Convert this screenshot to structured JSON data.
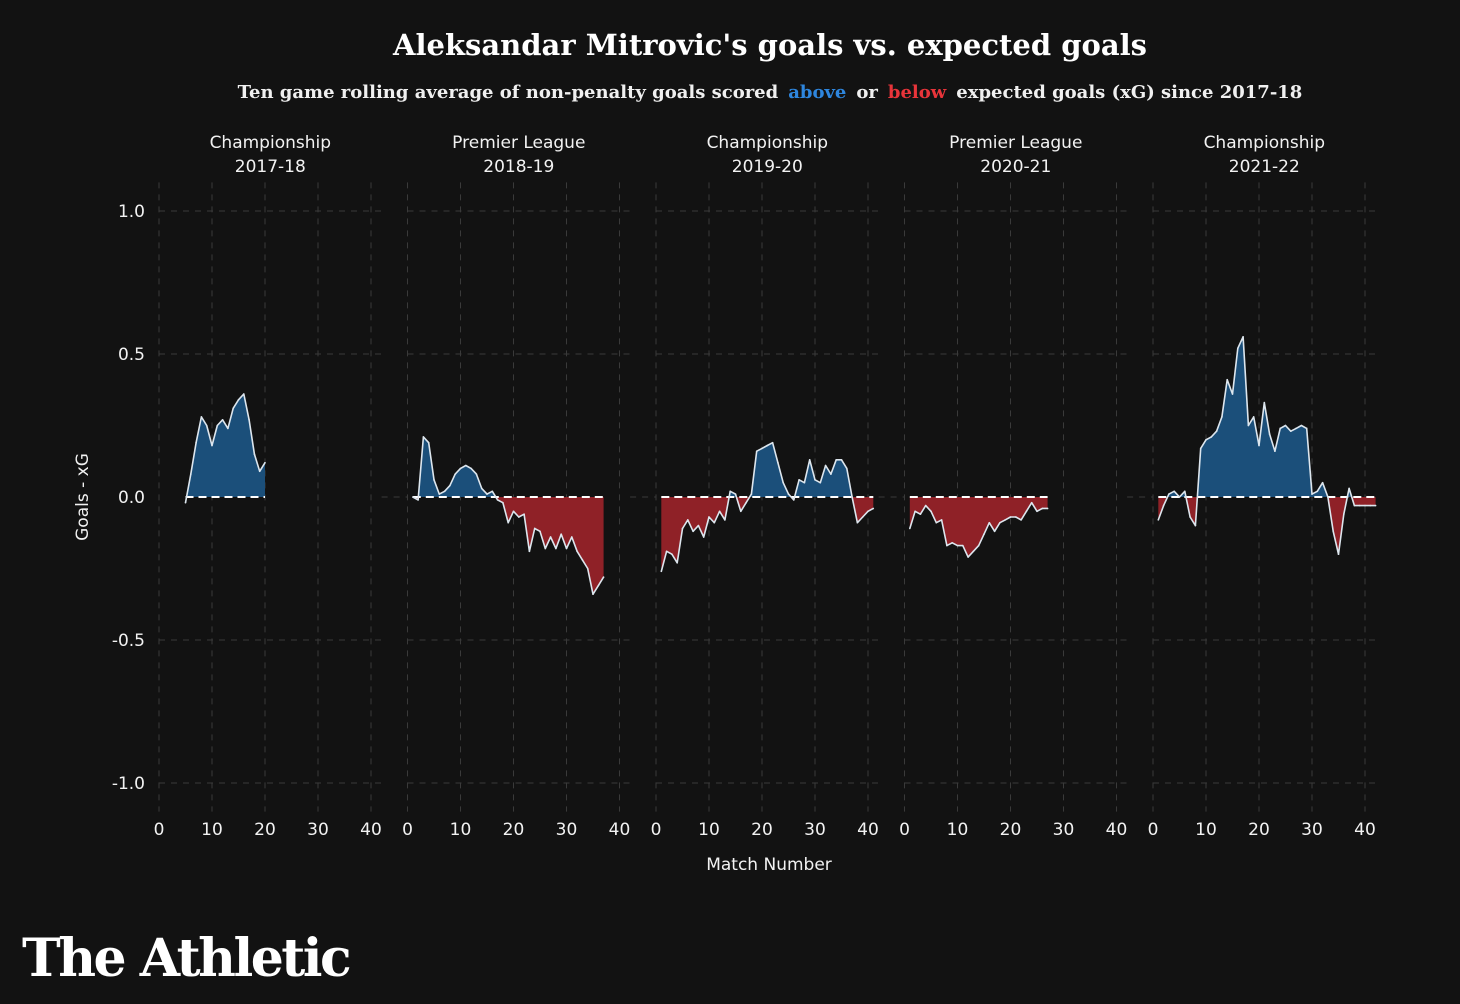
{
  "chart_data": {
    "type": "area",
    "title": "Aleksandar Mitrovic's goals vs. expected goals",
    "subtitle": {
      "prefix": "Ten game rolling average of non-penalty goals scored",
      "above": "above",
      "or": "or",
      "below": "below",
      "suffix": "expected goals (xG) since 2017-18"
    },
    "xlabel": "Match Number",
    "ylabel": "Goals - xG",
    "ylim": [
      -1.1,
      1.1
    ],
    "xlim": [
      0,
      42
    ],
    "yticks": [
      1.0,
      0.5,
      0.0,
      -0.5,
      -1.0
    ],
    "ytick_labels": [
      "1.0",
      "0.5",
      "0.0",
      "-0.5",
      "-1.0"
    ],
    "xticks": [
      0,
      10,
      20,
      30,
      40
    ],
    "xtick_labels": [
      "0",
      "10",
      "20",
      "30",
      "40"
    ],
    "grid": true,
    "colors": {
      "above": "#1b4f7a",
      "below": "#8f2127",
      "line": "#dde6ee",
      "accent_above": "#2e86de",
      "accent_below": "#e8343a"
    },
    "panels": [
      {
        "name": "Championship\n2017-18",
        "x": [
          5,
          6,
          7,
          8,
          9,
          10,
          11,
          12,
          13,
          14,
          15,
          16,
          17,
          18,
          19,
          20
        ],
        "y": [
          -0.02,
          0.08,
          0.19,
          0.28,
          0.25,
          0.18,
          0.25,
          0.27,
          0.24,
          0.31,
          0.34,
          0.36,
          0.27,
          0.15,
          0.09,
          0.12
        ]
      },
      {
        "name": "Premier League\n2018-19",
        "x": [
          1,
          2,
          3,
          4,
          5,
          6,
          7,
          8,
          9,
          10,
          11,
          12,
          13,
          14,
          15,
          16,
          17,
          18,
          19,
          20,
          21,
          22,
          23,
          24,
          25,
          26,
          27,
          28,
          29,
          30,
          31,
          32,
          33,
          34,
          35,
          36,
          37
        ],
        "y": [
          0.0,
          -0.01,
          0.21,
          0.19,
          0.06,
          0.01,
          0.02,
          0.04,
          0.08,
          0.1,
          0.11,
          0.1,
          0.08,
          0.03,
          0.01,
          0.02,
          -0.01,
          -0.02,
          -0.09,
          -0.05,
          -0.07,
          -0.06,
          -0.19,
          -0.11,
          -0.12,
          -0.18,
          -0.14,
          -0.18,
          -0.13,
          -0.18,
          -0.14,
          -0.19,
          -0.22,
          -0.25,
          -0.34,
          -0.31,
          -0.28
        ]
      },
      {
        "name": "Championship\n2019-20",
        "x": [
          1,
          2,
          3,
          4,
          5,
          6,
          7,
          8,
          9,
          10,
          11,
          12,
          13,
          14,
          15,
          16,
          17,
          18,
          19,
          20,
          21,
          22,
          23,
          24,
          25,
          26,
          27,
          28,
          29,
          30,
          31,
          32,
          33,
          34,
          35,
          36,
          37,
          38,
          39,
          40,
          41
        ],
        "y": [
          -0.26,
          -0.19,
          -0.2,
          -0.23,
          -0.11,
          -0.08,
          -0.12,
          -0.1,
          -0.14,
          -0.07,
          -0.09,
          -0.05,
          -0.08,
          0.02,
          0.01,
          -0.05,
          -0.02,
          0.01,
          0.16,
          0.17,
          0.18,
          0.19,
          0.12,
          0.05,
          0.01,
          -0.01,
          0.06,
          0.05,
          0.13,
          0.06,
          0.05,
          0.11,
          0.08,
          0.13,
          0.13,
          0.1,
          -0.0,
          -0.09,
          -0.07,
          -0.05,
          -0.04
        ]
      },
      {
        "name": "Premier League\n2020-21",
        "x": [
          1,
          2,
          3,
          4,
          5,
          6,
          7,
          8,
          9,
          10,
          11,
          12,
          13,
          14,
          15,
          16,
          17,
          18,
          19,
          20,
          21,
          22,
          23,
          24,
          25,
          26,
          27
        ],
        "y": [
          -0.11,
          -0.05,
          -0.06,
          -0.03,
          -0.05,
          -0.09,
          -0.08,
          -0.17,
          -0.16,
          -0.17,
          -0.17,
          -0.21,
          -0.19,
          -0.17,
          -0.13,
          -0.09,
          -0.12,
          -0.09,
          -0.08,
          -0.07,
          -0.07,
          -0.08,
          -0.05,
          -0.02,
          -0.05,
          -0.04,
          -0.04
        ]
      },
      {
        "name": "Championship\n2021-22",
        "x": [
          1,
          2,
          3,
          4,
          5,
          6,
          7,
          8,
          9,
          10,
          11,
          12,
          13,
          14,
          15,
          16,
          17,
          18,
          19,
          20,
          21,
          22,
          23,
          24,
          25,
          26,
          27,
          28,
          29,
          30,
          31,
          32,
          33,
          34,
          35,
          36,
          37,
          38,
          39,
          40,
          41,
          42
        ],
        "y": [
          -0.08,
          -0.03,
          0.01,
          0.02,
          0.0,
          0.02,
          -0.07,
          -0.1,
          0.17,
          0.2,
          0.21,
          0.23,
          0.28,
          0.41,
          0.36,
          0.52,
          0.56,
          0.25,
          0.28,
          0.18,
          0.33,
          0.22,
          0.16,
          0.24,
          0.25,
          0.23,
          0.24,
          0.25,
          0.24,
          0.01,
          0.02,
          0.05,
          0.0,
          -0.12,
          -0.2,
          -0.06,
          0.03,
          -0.03,
          -0.03,
          -0.03,
          -0.03,
          -0.03
        ]
      }
    ]
  },
  "brand": "The Athletic"
}
